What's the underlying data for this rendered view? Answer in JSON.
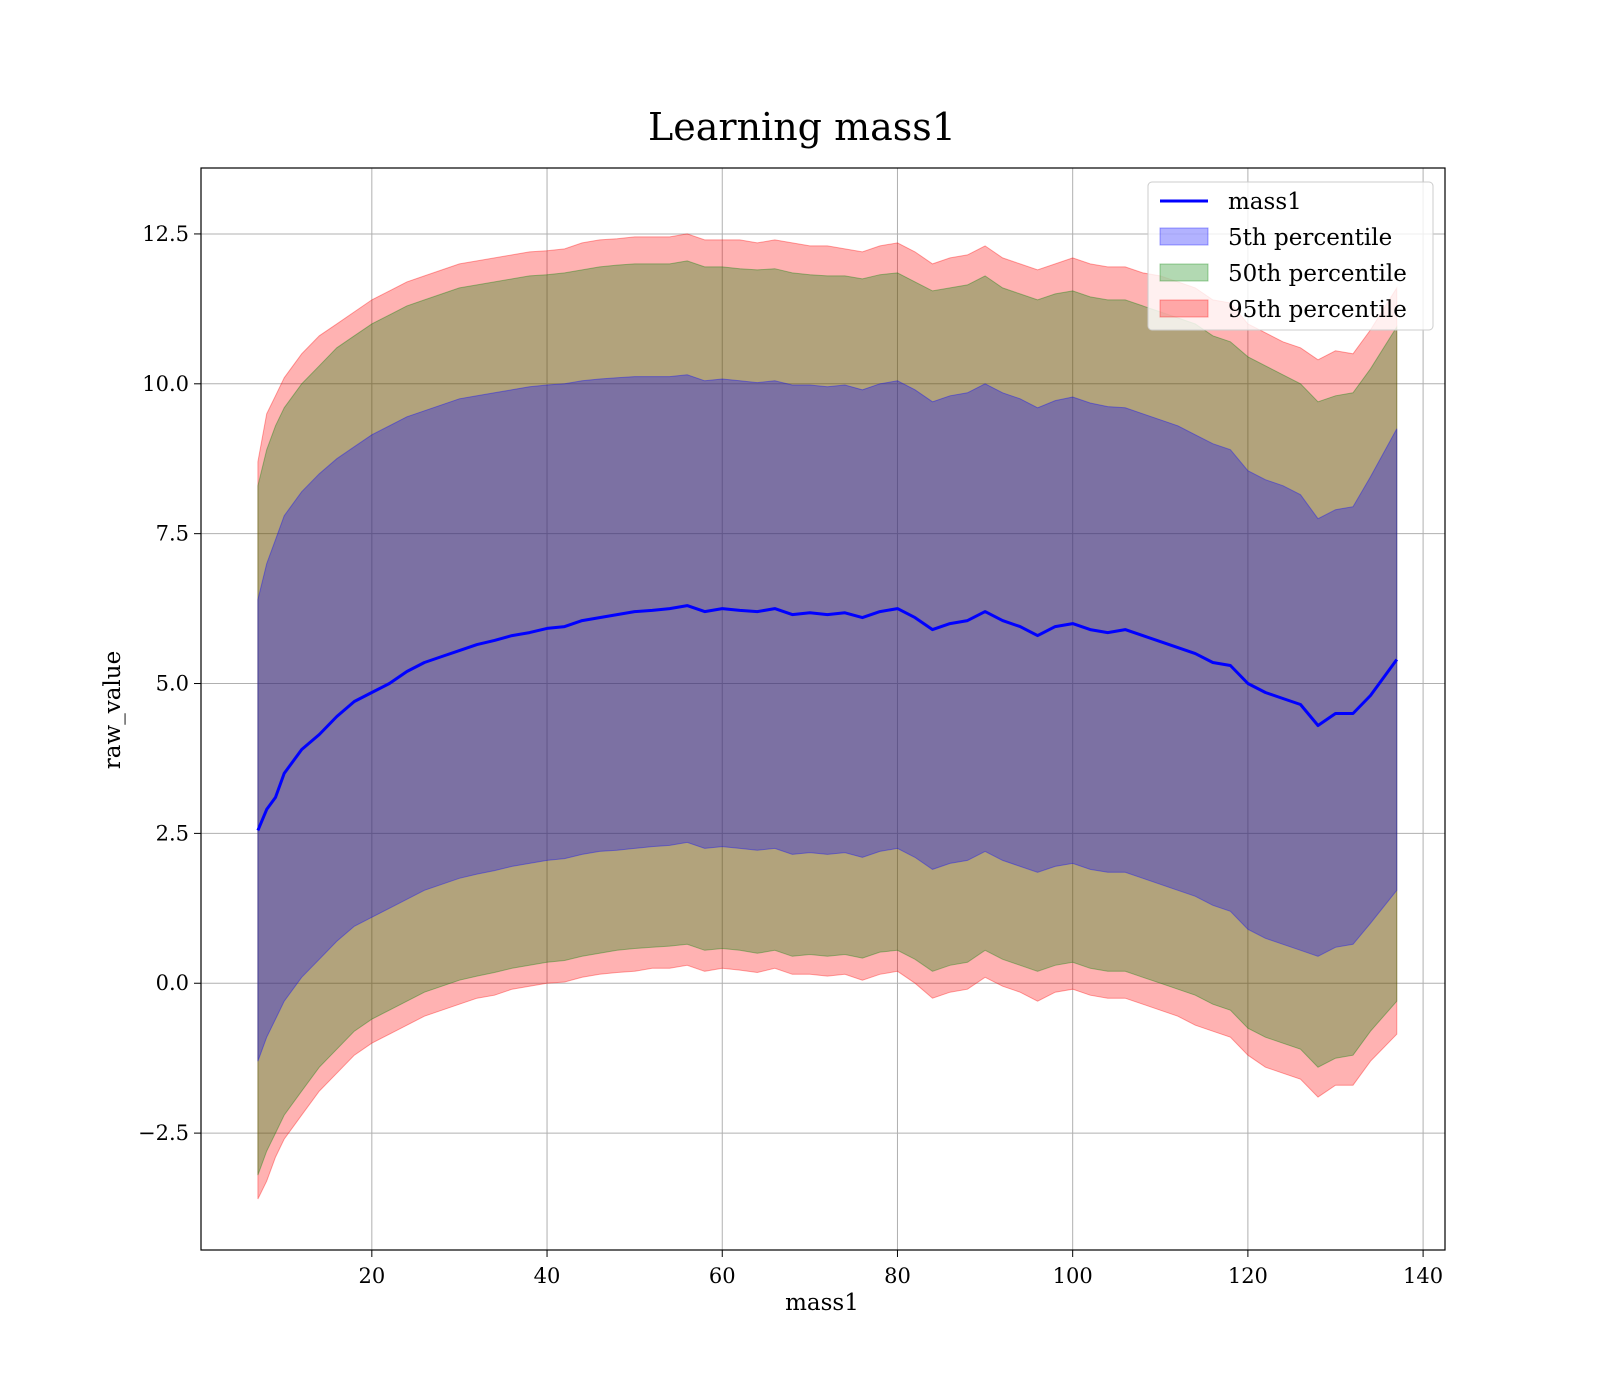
{
  "chart_data": {
    "type": "area",
    "title": "Learning mass1",
    "xlabel": "mass1",
    "ylabel": "raw_value",
    "xlim": [
      0.5,
      142.5
    ],
    "ylim": [
      -4.45,
      13.6
    ],
    "xticks": [
      20,
      40,
      60,
      80,
      100,
      120,
      140
    ],
    "yticks": [
      -2.5,
      0.0,
      2.5,
      5.0,
      7.5,
      10.0,
      12.5
    ],
    "ytick_labels": [
      "−2.5",
      "0.0",
      "2.5",
      "5.0",
      "7.5",
      "10.0",
      "12.5"
    ],
    "xtick_labels": [
      "20",
      "40",
      "60",
      "80",
      "100",
      "120",
      "140"
    ],
    "grid": true,
    "legend_position": "top-right",
    "legend": [
      "mass1",
      "5th percentile",
      "50th percentile",
      "95th percentile"
    ],
    "colors": {
      "line": "#0000ff",
      "band_5": "#0000ff",
      "band_50": "#008000",
      "band_95": "#ff0000"
    },
    "x": [
      7,
      8,
      9,
      10,
      12,
      14,
      16,
      18,
      20,
      22,
      24,
      26,
      28,
      30,
      32,
      34,
      36,
      38,
      40,
      42,
      44,
      46,
      48,
      50,
      52,
      54,
      56,
      58,
      60,
      62,
      64,
      66,
      68,
      70,
      72,
      74,
      76,
      78,
      80,
      82,
      84,
      86,
      88,
      90,
      92,
      94,
      96,
      98,
      100,
      102,
      104,
      106,
      108,
      110,
      112,
      114,
      116,
      118,
      120,
      122,
      124,
      126,
      128,
      130,
      132,
      134,
      137
    ],
    "series": [
      {
        "name": "mass1",
        "values": [
          2.55,
          2.9,
          3.1,
          3.5,
          3.9,
          4.15,
          4.45,
          4.7,
          4.85,
          5.0,
          5.2,
          5.35,
          5.45,
          5.55,
          5.65,
          5.72,
          5.8,
          5.85,
          5.92,
          5.95,
          6.05,
          6.1,
          6.15,
          6.2,
          6.22,
          6.25,
          6.3,
          6.2,
          6.25,
          6.22,
          6.2,
          6.25,
          6.15,
          6.18,
          6.15,
          6.18,
          6.1,
          6.2,
          6.25,
          6.1,
          5.9,
          6.0,
          6.05,
          6.2,
          6.05,
          5.95,
          5.8,
          5.95,
          6.0,
          5.9,
          5.85,
          5.9,
          5.8,
          5.7,
          5.6,
          5.5,
          5.35,
          5.3,
          5.0,
          4.85,
          4.75,
          4.65,
          4.3,
          4.5,
          4.5,
          4.8,
          5.4
        ]
      }
    ],
    "bands": [
      {
        "name": "95th percentile",
        "upper": [
          8.7,
          9.5,
          9.8,
          10.1,
          10.5,
          10.8,
          11.0,
          11.2,
          11.4,
          11.55,
          11.7,
          11.8,
          11.9,
          12.0,
          12.05,
          12.1,
          12.15,
          12.2,
          12.22,
          12.25,
          12.35,
          12.4,
          12.42,
          12.45,
          12.45,
          12.45,
          12.5,
          12.4,
          12.4,
          12.4,
          12.35,
          12.4,
          12.35,
          12.3,
          12.3,
          12.25,
          12.2,
          12.3,
          12.35,
          12.2,
          12.0,
          12.1,
          12.15,
          12.3,
          12.1,
          12.0,
          11.9,
          12.0,
          12.1,
          12.0,
          11.95,
          11.95,
          11.85,
          11.8,
          11.7,
          11.6,
          11.4,
          11.35,
          11.0,
          10.85,
          10.7,
          10.6,
          10.4,
          10.55,
          10.5,
          10.9,
          11.6
        ],
        "lower": [
          -3.6,
          -3.3,
          -2.9,
          -2.6,
          -2.2,
          -1.8,
          -1.5,
          -1.2,
          -1.0,
          -0.85,
          -0.7,
          -0.55,
          -0.45,
          -0.35,
          -0.25,
          -0.2,
          -0.1,
          -0.05,
          0.0,
          0.02,
          0.1,
          0.15,
          0.18,
          0.2,
          0.25,
          0.25,
          0.3,
          0.2,
          0.25,
          0.22,
          0.18,
          0.25,
          0.15,
          0.15,
          0.12,
          0.15,
          0.05,
          0.15,
          0.2,
          0.0,
          -0.25,
          -0.15,
          -0.1,
          0.1,
          -0.05,
          -0.15,
          -0.3,
          -0.15,
          -0.1,
          -0.2,
          -0.25,
          -0.25,
          -0.35,
          -0.45,
          -0.55,
          -0.7,
          -0.8,
          -0.9,
          -1.2,
          -1.4,
          -1.5,
          -1.6,
          -1.9,
          -1.7,
          -1.7,
          -1.3,
          -0.85
        ]
      },
      {
        "name": "50th percentile",
        "upper": [
          8.3,
          8.9,
          9.3,
          9.6,
          10.0,
          10.3,
          10.6,
          10.8,
          11.0,
          11.15,
          11.3,
          11.4,
          11.5,
          11.6,
          11.65,
          11.7,
          11.75,
          11.8,
          11.82,
          11.85,
          11.9,
          11.95,
          11.98,
          12.0,
          12.0,
          12.0,
          12.05,
          11.95,
          11.95,
          11.92,
          11.9,
          11.92,
          11.85,
          11.82,
          11.8,
          11.8,
          11.75,
          11.82,
          11.85,
          11.7,
          11.55,
          11.6,
          11.65,
          11.8,
          11.6,
          11.5,
          11.4,
          11.5,
          11.55,
          11.45,
          11.4,
          11.4,
          11.3,
          11.2,
          11.1,
          11.0,
          10.8,
          10.7,
          10.45,
          10.3,
          10.15,
          10.0,
          9.7,
          9.8,
          9.85,
          10.25,
          10.95
        ],
        "lower": [
          -3.2,
          -2.8,
          -2.5,
          -2.2,
          -1.8,
          -1.4,
          -1.1,
          -0.8,
          -0.6,
          -0.45,
          -0.3,
          -0.15,
          -0.05,
          0.05,
          0.12,
          0.18,
          0.25,
          0.3,
          0.35,
          0.38,
          0.45,
          0.5,
          0.55,
          0.58,
          0.6,
          0.62,
          0.65,
          0.55,
          0.58,
          0.55,
          0.5,
          0.55,
          0.45,
          0.48,
          0.45,
          0.48,
          0.42,
          0.52,
          0.55,
          0.4,
          0.2,
          0.3,
          0.35,
          0.55,
          0.4,
          0.3,
          0.2,
          0.3,
          0.35,
          0.25,
          0.2,
          0.2,
          0.1,
          0.0,
          -0.1,
          -0.2,
          -0.35,
          -0.45,
          -0.75,
          -0.9,
          -1.0,
          -1.1,
          -1.4,
          -1.25,
          -1.2,
          -0.8,
          -0.3
        ]
      },
      {
        "name": "5th percentile",
        "upper": [
          6.4,
          7.0,
          7.4,
          7.8,
          8.2,
          8.5,
          8.75,
          8.95,
          9.15,
          9.3,
          9.45,
          9.55,
          9.65,
          9.75,
          9.8,
          9.85,
          9.9,
          9.95,
          9.98,
          10.0,
          10.05,
          10.08,
          10.1,
          10.12,
          10.12,
          10.12,
          10.15,
          10.05,
          10.08,
          10.05,
          10.02,
          10.05,
          9.98,
          9.98,
          9.95,
          9.98,
          9.9,
          10.0,
          10.05,
          9.9,
          9.7,
          9.8,
          9.85,
          10.0,
          9.85,
          9.75,
          9.6,
          9.72,
          9.78,
          9.68,
          9.62,
          9.6,
          9.5,
          9.4,
          9.3,
          9.15,
          9.0,
          8.9,
          8.55,
          8.4,
          8.3,
          8.15,
          7.75,
          7.9,
          7.95,
          8.45,
          9.25
        ],
        "lower": [
          -1.3,
          -0.9,
          -0.6,
          -0.3,
          0.1,
          0.4,
          0.7,
          0.95,
          1.1,
          1.25,
          1.4,
          1.55,
          1.65,
          1.75,
          1.82,
          1.88,
          1.95,
          2.0,
          2.05,
          2.08,
          2.15,
          2.2,
          2.22,
          2.25,
          2.28,
          2.3,
          2.35,
          2.25,
          2.28,
          2.25,
          2.22,
          2.25,
          2.15,
          2.18,
          2.15,
          2.18,
          2.1,
          2.2,
          2.25,
          2.1,
          1.9,
          2.0,
          2.05,
          2.2,
          2.05,
          1.95,
          1.85,
          1.95,
          2.0,
          1.9,
          1.85,
          1.85,
          1.75,
          1.65,
          1.55,
          1.45,
          1.3,
          1.2,
          0.9,
          0.75,
          0.65,
          0.55,
          0.45,
          0.6,
          0.65,
          1.0,
          1.55
        ]
      }
    ]
  }
}
